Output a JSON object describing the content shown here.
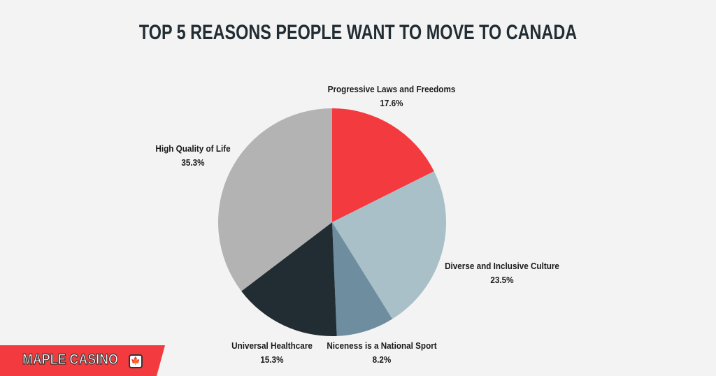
{
  "title": "TOP 5 REASONS PEOPLE WANT TO MOVE TO CANADA",
  "brand": {
    "name": "MAPLE CASINO",
    "icon": "maple-leaf-icon",
    "color": "#f23a3f"
  },
  "labels": {
    "progressive": {
      "name": "Progressive Laws and Freedoms",
      "pct": "17.6%"
    },
    "diverse": {
      "name": "Diverse and Inclusive Culture",
      "pct": "23.5%"
    },
    "niceness": {
      "name": "Niceness is a National Sport",
      "pct": "8.2%"
    },
    "healthcare": {
      "name": "Universal Healthcare",
      "pct": "15.3%"
    },
    "quality": {
      "name": "High Quality of Life",
      "pct": "35.3%"
    }
  },
  "chart_data": {
    "type": "pie",
    "title": "TOP 5 REASONS PEOPLE WANT TO MOVE TO CANADA",
    "categories": [
      "Progressive Laws and Freedoms",
      "Diverse and Inclusive Culture",
      "Niceness is a National Sport",
      "Universal Healthcare",
      "High Quality of Life"
    ],
    "values": [
      17.6,
      23.5,
      8.2,
      15.3,
      35.3
    ],
    "unit": "%",
    "colors": [
      "#f23a3f",
      "#a9c0c8",
      "#6e8ea0",
      "#222d33",
      "#b3b3b3"
    ],
    "start_angle": "12 o'clock, clockwise",
    "legend": "none (direct labels)"
  }
}
